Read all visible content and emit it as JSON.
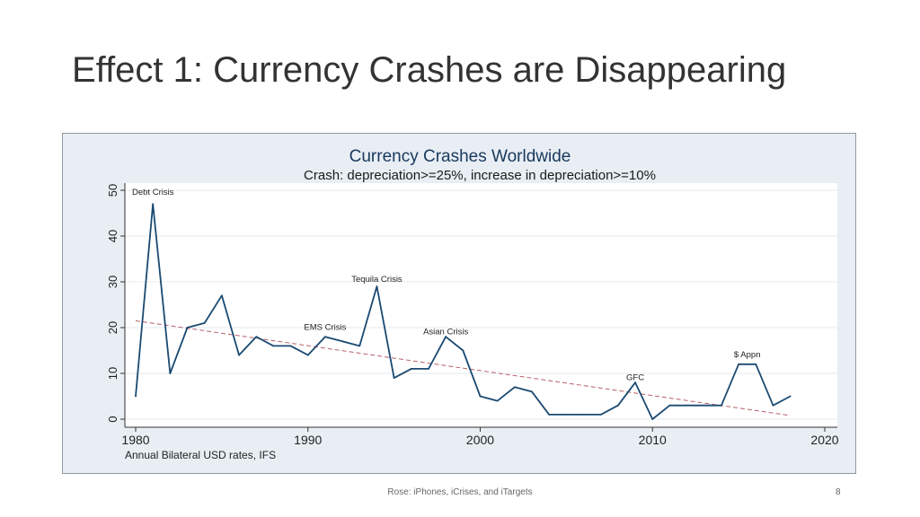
{
  "slide": {
    "title": "Effect 1: Currency Crashes are Disappearing",
    "footer_source": "Rose: iPhones, iCrises, and iTargets",
    "page_number": "8"
  },
  "chart_data": {
    "type": "line",
    "title": "Currency Crashes Worldwide",
    "subtitle": "Crash: depreciation>=25%, increase in depreciation>=10%",
    "xlabel": "Annual Bilateral USD rates, IFS",
    "ylabel": "",
    "xlim": [
      1980,
      2020
    ],
    "ylim": [
      0,
      50
    ],
    "x_ticks": [
      1980,
      1990,
      2000,
      2010,
      2020
    ],
    "y_ticks": [
      0,
      10,
      20,
      30,
      40,
      50
    ],
    "grid": true,
    "series": [
      {
        "x": [
          1980,
          1981,
          1982,
          1983,
          1984,
          1985,
          1986,
          1987,
          1988,
          1989,
          1990,
          1991,
          1992,
          1993,
          1994,
          1995,
          1996,
          1997,
          1998,
          1999,
          2000,
          2001,
          2002,
          2003,
          2004,
          2005,
          2006,
          2007,
          2008,
          2009,
          2010,
          2011,
          2012,
          2013,
          2014,
          2015,
          2016,
          2017,
          2018
        ],
        "values": [
          5,
          47,
          10,
          20,
          21,
          27,
          14,
          18,
          16,
          16,
          14,
          18,
          17,
          16,
          29,
          9,
          11,
          11,
          18,
          15,
          5,
          4,
          7,
          6,
          1,
          1,
          1,
          1,
          3,
          8,
          0,
          3,
          3,
          3,
          3,
          12,
          12,
          3,
          5
        ],
        "color": "#1a4a72"
      }
    ],
    "trend_line": {
      "x": [
        1980,
        2018
      ],
      "values": [
        21.5,
        0.8
      ],
      "color": "#b8606a",
      "style": "dashed"
    },
    "annotations": [
      {
        "text": "Debt Crisis",
        "x": 1980,
        "y": 49
      },
      {
        "text": "Tequila Crisis",
        "x": 1994,
        "y": 30
      },
      {
        "text": "EMS Crisis",
        "x": 1991,
        "y": 19.5
      },
      {
        "text": "Asian Crisis",
        "x": 1998,
        "y": 18.5
      },
      {
        "text": "$ Appn",
        "x": 2015.5,
        "y": 13.5
      },
      {
        "text": "GFC",
        "x": 2009,
        "y": 8.5
      }
    ],
    "colors": {
      "line": "#1a4a72",
      "title": "#1a3a60",
      "plot_background": "#ffffff",
      "frame_background": "#e8eef3"
    }
  }
}
